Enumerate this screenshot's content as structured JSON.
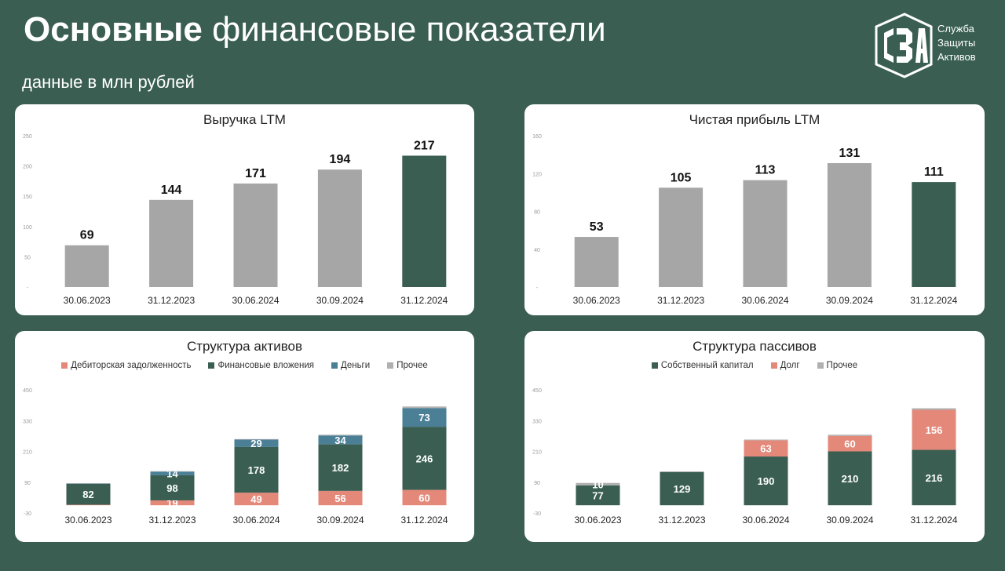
{
  "header": {
    "title_bold": "Основные",
    "title_rest": "финансовые показатели",
    "subtitle": "данные в млн рублей",
    "logo_lines": [
      "Служба",
      "Защиты",
      "Активов"
    ]
  },
  "colors": {
    "background": "#3a5f52",
    "gray": "#a6a6a6",
    "green": "#3a5f52",
    "salmon": "#e4887a",
    "teal": "#4a7f96",
    "light_gray": "#b0b0b0"
  },
  "chart_data": [
    {
      "id": "revenue",
      "type": "bar",
      "title": "Выручка LTM",
      "categories": [
        "30.06.2023",
        "31.12.2023",
        "30.06.2024",
        "30.09.2024",
        "31.12.2024"
      ],
      "values": [
        69,
        144,
        171,
        194,
        217
      ],
      "highlight_last": true,
      "ylim": [
        0,
        250
      ],
      "yticks": [
        "-",
        "50",
        "100",
        "150",
        "200",
        "250"
      ],
      "grid": false
    },
    {
      "id": "net_profit",
      "type": "bar",
      "title": "Чистая прибыль LTM",
      "categories": [
        "30.06.2023",
        "31.12.2023",
        "30.06.2024",
        "30.09.2024",
        "31.12.2024"
      ],
      "values": [
        53,
        105,
        113,
        131,
        111
      ],
      "highlight_last": true,
      "ylim": [
        0,
        160
      ],
      "yticks": [
        "-",
        "40",
        "80",
        "120",
        "160"
      ],
      "grid": false
    },
    {
      "id": "assets",
      "type": "bar",
      "stacked": true,
      "title": "Структура активов",
      "categories": [
        "30.06.2023",
        "31.12.2023",
        "30.06.2024",
        "30.09.2024",
        "31.12.2024"
      ],
      "series": [
        {
          "name": "Дебиторская задолженность",
          "color": "#e4887a",
          "values": [
            2,
            19,
            49,
            56,
            60
          ],
          "labels": [
            "",
            "19",
            "49",
            "56",
            "60"
          ]
        },
        {
          "name": "Финансовые вложения",
          "color": "#3a5f52",
          "values": [
            82,
            98,
            178,
            182,
            246
          ],
          "labels": [
            "82",
            "98",
            "178",
            "182",
            "246"
          ]
        },
        {
          "name": "Деньги",
          "color": "#4a7f96",
          "values": [
            1,
            14,
            29,
            34,
            73
          ],
          "labels": [
            "",
            "14",
            "29",
            "34",
            "73"
          ]
        },
        {
          "name": "Прочее",
          "color": "#b0b0b0",
          "values": [
            1,
            2,
            2,
            3,
            6
          ],
          "labels": [
            "",
            "",
            "",
            "",
            ""
          ]
        }
      ],
      "ylim": [
        -30,
        450
      ],
      "yticks": [
        "-30",
        "90",
        "210",
        "330",
        "450"
      ],
      "legend": "top",
      "grid": false
    },
    {
      "id": "liabilities",
      "type": "bar",
      "stacked": true,
      "title": "Структура пассивов",
      "categories": [
        "30.06.2023",
        "31.12.2023",
        "30.06.2024",
        "30.09.2024",
        "31.12.2024"
      ],
      "series": [
        {
          "name": "Собственный капитал",
          "color": "#3a5f52",
          "values": [
            77,
            129,
            190,
            210,
            216
          ],
          "labels": [
            "77",
            "129",
            "190",
            "210",
            "216"
          ]
        },
        {
          "name": "Долг",
          "color": "#e4887a",
          "values": [
            0,
            0,
            63,
            60,
            156
          ],
          "labels": [
            "",
            "",
            "63",
            "60",
            "156"
          ]
        },
        {
          "name": "Прочее",
          "color": "#b0b0b0",
          "values": [
            10,
            3,
            3,
            5,
            6
          ],
          "labels": [
            "10",
            "",
            "",
            "",
            ""
          ]
        }
      ],
      "ylim": [
        -30,
        450
      ],
      "yticks": [
        "-30",
        "90",
        "210",
        "330",
        "450"
      ],
      "legend": "top",
      "grid": false
    }
  ]
}
